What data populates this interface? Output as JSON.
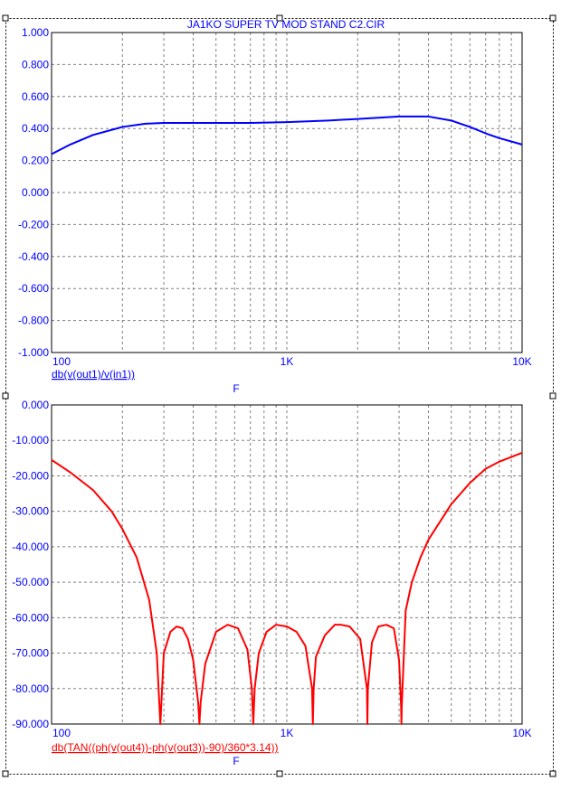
{
  "title": "JA1KO SUPER TV MOD STAND C2.CIR",
  "colors": {
    "axis_text": "#0000ff",
    "grid": "#808080",
    "frame": "#000000",
    "series_top": "#0000ff",
    "series_bottom": "#ff0000"
  },
  "chart_data": [
    {
      "type": "line",
      "x_scale": "log",
      "xlim": [
        100,
        10000
      ],
      "ylim": [
        -1.0,
        1.0
      ],
      "grid": true,
      "xticklabels": [
        "100",
        "1K",
        "10K"
      ],
      "yticklabels": [
        "1.000",
        "0.800",
        "0.600",
        "0.400",
        "0.200",
        "0.000",
        "-0.200",
        "-0.400",
        "-0.600",
        "-0.800",
        "-1.000"
      ],
      "ylabel_text": "db(v(out1)/v(in1))",
      "xlabel": "F",
      "series": [
        {
          "color": "#0000ff",
          "x": [
            100,
            120,
            150,
            200,
            250,
            300,
            400,
            500,
            700,
            1000,
            1500,
            2000,
            3000,
            4000,
            5000,
            6000,
            7000,
            8000,
            10000
          ],
          "y": [
            0.24,
            0.3,
            0.36,
            0.41,
            0.43,
            0.435,
            0.435,
            0.435,
            0.435,
            0.44,
            0.45,
            0.46,
            0.475,
            0.475,
            0.45,
            0.41,
            0.37,
            0.34,
            0.3
          ]
        }
      ]
    },
    {
      "type": "line",
      "x_scale": "log",
      "xlim": [
        100,
        10000
      ],
      "ylim": [
        -90,
        0
      ],
      "grid": true,
      "xticklabels": [
        "100",
        "1K",
        "10K"
      ],
      "yticklabels": [
        "0.000",
        "-10.000",
        "-20.000",
        "-30.000",
        "-40.000",
        "-50.000",
        "-60.000",
        "-70.000",
        "-80.000",
        "-90.000"
      ],
      "ylabel_text": "db(TAN((ph(v(out4))-ph(v(out3))-90)/360*3.14))",
      "xlabel": "F",
      "series": [
        {
          "color": "#ff0000",
          "x": [
            100,
            120,
            150,
            180,
            200,
            230,
            260,
            280,
            290,
            300,
            320,
            340,
            360,
            380,
            400,
            420,
            425,
            430,
            450,
            500,
            560,
            620,
            680,
            710,
            720,
            730,
            760,
            820,
            900,
            1000,
            1100,
            1200,
            1280,
            1290,
            1300,
            1330,
            1450,
            1600,
            1700,
            1850,
            2050,
            2190,
            2200,
            2210,
            2300,
            2450,
            2650,
            2850,
            3000,
            3060,
            3070,
            3080,
            3200,
            3400,
            3700,
            4000,
            5000,
            6000,
            7000,
            8000,
            10000
          ],
          "y": [
            -15.5,
            -19,
            -24,
            -30,
            -35,
            -43,
            -55,
            -70,
            -90,
            -70,
            -64,
            -62.5,
            -63,
            -66,
            -72,
            -84,
            -90,
            -84,
            -73,
            -64,
            -62,
            -63,
            -69,
            -80,
            -90,
            -80,
            -70,
            -64,
            -62,
            -62.5,
            -64,
            -68,
            -80,
            -90,
            -80,
            -71,
            -65,
            -62,
            -62,
            -62.5,
            -66,
            -80,
            -90,
            -80,
            -67,
            -62.5,
            -62,
            -63,
            -72,
            -85,
            -90,
            -85,
            -58,
            -50,
            -43,
            -38,
            -28,
            -22,
            -18,
            -16,
            -13.5
          ]
        }
      ]
    }
  ]
}
